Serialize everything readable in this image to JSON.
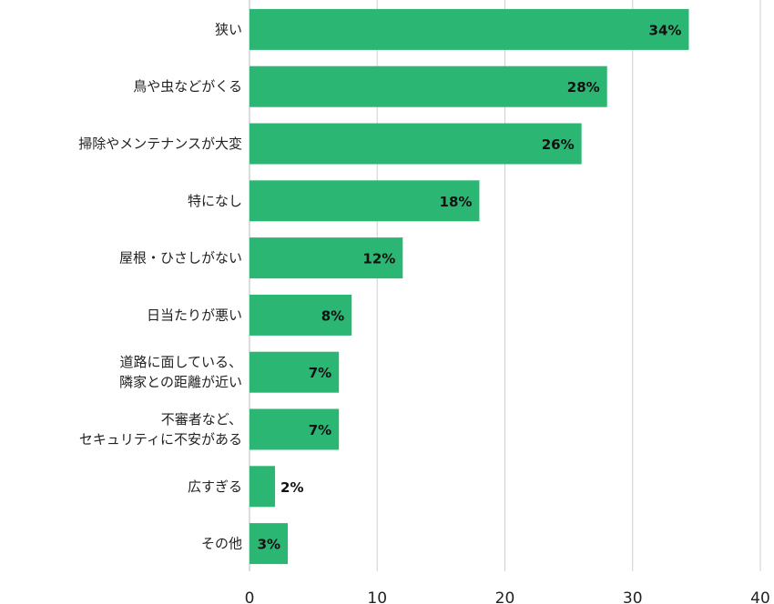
{
  "chart_data": {
    "type": "bar",
    "orientation": "horizontal",
    "categories": [
      [
        "狭い"
      ],
      [
        "鳥や虫などがくる"
      ],
      [
        "掃除やメンテナンスが大変"
      ],
      [
        "特になし"
      ],
      [
        "屋根・ひさしがない"
      ],
      [
        "日当たりが悪い"
      ],
      [
        "道路に面している、",
        "隣家との距離が近い"
      ],
      [
        "不審者など、",
        "セキュリティに不安がある"
      ],
      [
        "広すぎる"
      ],
      [
        "その他"
      ]
    ],
    "values": [
      34.4,
      28,
      26,
      18,
      12,
      8,
      7,
      7,
      2,
      3
    ],
    "data_labels": [
      "34%",
      "28%",
      "26%",
      "18%",
      "12%",
      "8%",
      "7%",
      "7%",
      "2%",
      "3%"
    ],
    "xlim": [
      0,
      40
    ],
    "xticks": [
      0,
      10,
      20,
      30,
      40
    ],
    "grid": true,
    "title": "",
    "xlabel": "",
    "ylabel": "",
    "bar_color": "#2bb673",
    "grid_color": "#d0d0d0"
  }
}
